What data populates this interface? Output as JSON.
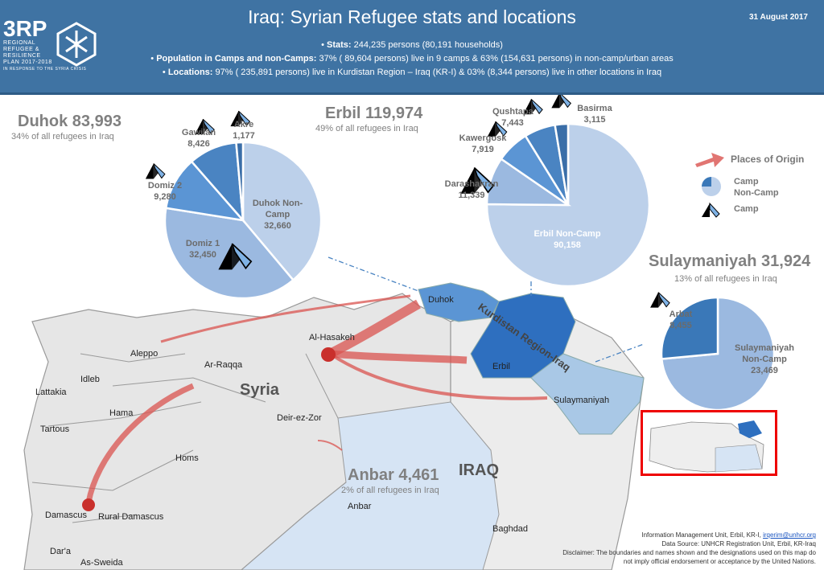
{
  "header": {
    "title": "Iraq: Syrian Refugee stats and locations",
    "date": "31 August 2017",
    "logo": {
      "big": "3RP",
      "lines": [
        "REGIONAL",
        "REFUGEE &",
        "RESILIENCE",
        "PLAN 2017-2018",
        "IN RESPONSE TO THE SYRIA CRISIS"
      ]
    },
    "bullets": [
      {
        "label": "Stats:",
        "text": " 244,235 persons (80,191 households)"
      },
      {
        "label": "Population in Camps and non-Camps:",
        "text": " 37% ( 89,604 persons) live in 9 camps & 63% (154,631 persons) in non-camp/urban areas"
      },
      {
        "label": "Locations:",
        "text": " 97% ( 235,891 persons) live in Kurdistan Region – Iraq (KR-I) & 03% (8,344 persons) live in other locations in Iraq"
      }
    ]
  },
  "colors": {
    "header": "#3f73a3",
    "arrow": "#d9534f",
    "kri": "#2e6fbf",
    "anbar": "#d6e4f4",
    "syria": "#e6e6e6"
  },
  "governorates": {
    "duhok": {
      "title": "Duhok 83,993",
      "sub": "34% of all refugees in Iraq",
      "slices": [
        {
          "name": "Duhok Non-Camp",
          "value": 32660,
          "label": "32,660",
          "color": "#bcd0ea",
          "camp": false
        },
        {
          "name": "Domiz 1",
          "value": 32450,
          "label": "32,450",
          "color": "#9bb9e0",
          "camp": true
        },
        {
          "name": "Domiz 2",
          "value": 9280,
          "label": "9,280",
          "color": "#5b95d4",
          "camp": true
        },
        {
          "name": "Gawilan",
          "value": 8426,
          "label": "8,426",
          "color": "#4a84c2",
          "camp": true
        },
        {
          "name": "Akre",
          "value": 1177,
          "label": "1,177",
          "color": "#3a6ea8",
          "camp": true
        }
      ]
    },
    "erbil": {
      "title": "Erbil 119,974",
      "sub": "49% of all refugees in Iraq",
      "slices": [
        {
          "name": "Erbil Non-Camp",
          "value": 90158,
          "label": "90,158",
          "color": "#bcd0ea",
          "camp": false
        },
        {
          "name": "Darashakran",
          "value": 11339,
          "label": "11,339",
          "color": "#9bb9e0",
          "camp": true
        },
        {
          "name": "Kawergosk",
          "value": 7919,
          "label": "7,919",
          "color": "#5b95d4",
          "camp": true
        },
        {
          "name": "Qushtapa",
          "value": 7443,
          "label": "7,443",
          "color": "#4a84c2",
          "camp": true
        },
        {
          "name": "Basirma",
          "value": 3115,
          "label": "3,115",
          "color": "#3a6ea8",
          "camp": true
        }
      ]
    },
    "sulaymaniyah": {
      "title": "Sulaymaniyah 31,924",
      "sub": "13% of all refugees in Iraq",
      "slices": [
        {
          "name": "Sulaymaniyah Non-Camp",
          "value": 23469,
          "label": "23,469",
          "color": "#9bb9e0",
          "camp": false
        },
        {
          "name": "Arbat",
          "value": 8455,
          "label": "8,455",
          "color": "#3a78b8",
          "camp": true
        }
      ]
    },
    "anbar": {
      "title": "Anbar 4,461",
      "sub": "2% of all refugees in Iraq"
    }
  },
  "legend": {
    "origin": "Places of Origin",
    "camp": "Camp",
    "noncamp": "Non-Camp",
    "camp_icon": "Camp"
  },
  "map_labels": {
    "syria": "Syria",
    "iraq": "IRAQ",
    "kri": "Kurdistan Region-Iraq",
    "duhok": "Duhok",
    "erbil": "Erbil",
    "sulaymaniyah": "Sulaymaniyah",
    "anbar": "Anbar",
    "baghdad": "Baghdad",
    "aleppo": "Aleppo",
    "idleb": "Idleb",
    "lattakia": "Lattakia",
    "hama": "Hama",
    "tartous": "Tartous",
    "homs": "Homs",
    "damascus": "Damascus",
    "rural_damascus": "Rural Damascus",
    "daraa": "Dar'a",
    "as_sweida": "As-Sweida",
    "ar_raqqa": "Ar-Raqqa",
    "deir_ez_zor": "Deir-ez-Zor",
    "al_hasakeh": "Al-Hasakeh"
  },
  "credits": {
    "line1": "Information Management Unit, Erbil, KR-I, ",
    "email": "irqerim@unhcr.org",
    "line2": "Data Source: UNHCR Registration Unit, Erbil, KR-Iraq",
    "line3": "Disclaimer: The boundaries and names shown and the designations used on this map do",
    "line4": "not imply official endorsement or acceptance by the United Nations."
  }
}
